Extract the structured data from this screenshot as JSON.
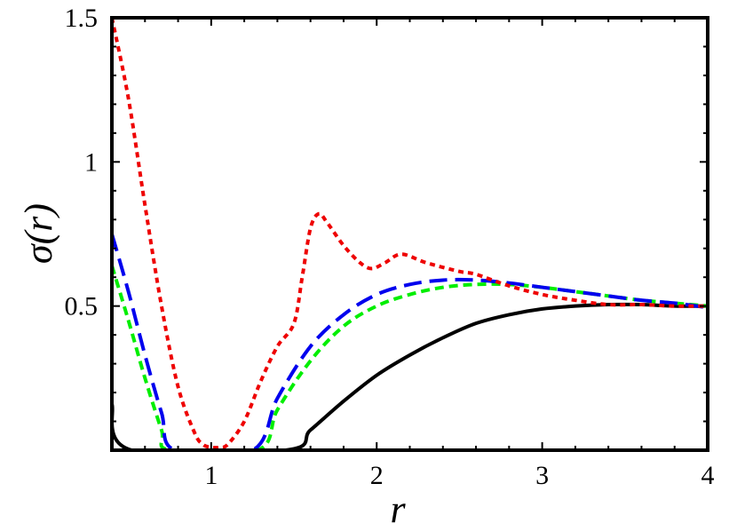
{
  "chart_data": {
    "type": "line",
    "title": "",
    "xlabel": "r",
    "ylabel": "σ(r)",
    "xlim": [
      0.4,
      4
    ],
    "ylim": [
      0,
      1.5
    ],
    "x_ticks": [
      1,
      2,
      3,
      4
    ],
    "x_tick_labels": [
      "1",
      "2",
      "3",
      "4"
    ],
    "y_ticks": [
      0.5,
      1,
      1.5
    ],
    "y_tick_labels": [
      "0.5",
      "1",
      "1.5"
    ],
    "grid": false,
    "legend": null,
    "series": [
      {
        "name": "black-solid",
        "color": "#000000",
        "style": "solid",
        "x": [
          0.4,
          0.52,
          1.45,
          1.6,
          1.8,
          2.0,
          2.2,
          2.4,
          2.6,
          2.8,
          3.0,
          3.2,
          3.4,
          3.6,
          3.8,
          4.0
        ],
        "y": [
          0.16,
          0.0,
          0.0,
          0.07,
          0.17,
          0.26,
          0.33,
          0.39,
          0.44,
          0.47,
          0.49,
          0.5,
          0.505,
          0.505,
          0.5,
          0.5
        ]
      },
      {
        "name": "green-dashed",
        "color": "#00ee00",
        "style": "dashed",
        "x": [
          0.4,
          0.5,
          0.6,
          0.7,
          0.75,
          1.28,
          1.4,
          1.6,
          1.8,
          2.0,
          2.2,
          2.4,
          2.6,
          2.8,
          3.0,
          3.2,
          3.4,
          3.6,
          3.8,
          4.0
        ],
        "y": [
          0.64,
          0.45,
          0.25,
          0.07,
          0.0,
          0.0,
          0.14,
          0.31,
          0.43,
          0.5,
          0.54,
          0.565,
          0.575,
          0.575,
          0.565,
          0.55,
          0.535,
          0.52,
          0.51,
          0.5
        ]
      },
      {
        "name": "blue-long-dashed",
        "color": "#0000ee",
        "style": "longdash",
        "x": [
          0.4,
          0.5,
          0.6,
          0.7,
          0.78,
          1.25,
          1.4,
          1.6,
          1.8,
          2.0,
          2.2,
          2.4,
          2.6,
          2.8,
          3.0,
          3.2,
          3.4,
          3.6,
          3.8,
          4.0
        ],
        "y": [
          0.75,
          0.55,
          0.33,
          0.13,
          0.0,
          0.0,
          0.18,
          0.36,
          0.47,
          0.54,
          0.575,
          0.59,
          0.59,
          0.58,
          0.565,
          0.55,
          0.535,
          0.52,
          0.51,
          0.495
        ]
      },
      {
        "name": "red-dotted",
        "color": "#ee0000",
        "style": "dotted",
        "x": [
          0.4,
          0.5,
          0.6,
          0.7,
          0.8,
          0.9,
          0.95,
          1.0,
          1.05,
          1.1,
          1.2,
          1.3,
          1.4,
          1.5,
          1.55,
          1.6,
          1.65,
          1.7,
          1.8,
          1.9,
          1.97,
          2.05,
          2.15,
          2.3,
          2.5,
          2.6,
          2.8,
          3.0,
          3.2,
          3.4,
          3.6,
          3.8,
          4.0
        ],
        "y": [
          1.5,
          1.22,
          0.85,
          0.5,
          0.22,
          0.06,
          0.02,
          0.01,
          0.01,
          0.02,
          0.1,
          0.24,
          0.36,
          0.44,
          0.6,
          0.77,
          0.82,
          0.79,
          0.71,
          0.65,
          0.63,
          0.65,
          0.68,
          0.65,
          0.62,
          0.61,
          0.57,
          0.54,
          0.52,
          0.505,
          0.505,
          0.5,
          0.5
        ]
      }
    ]
  }
}
